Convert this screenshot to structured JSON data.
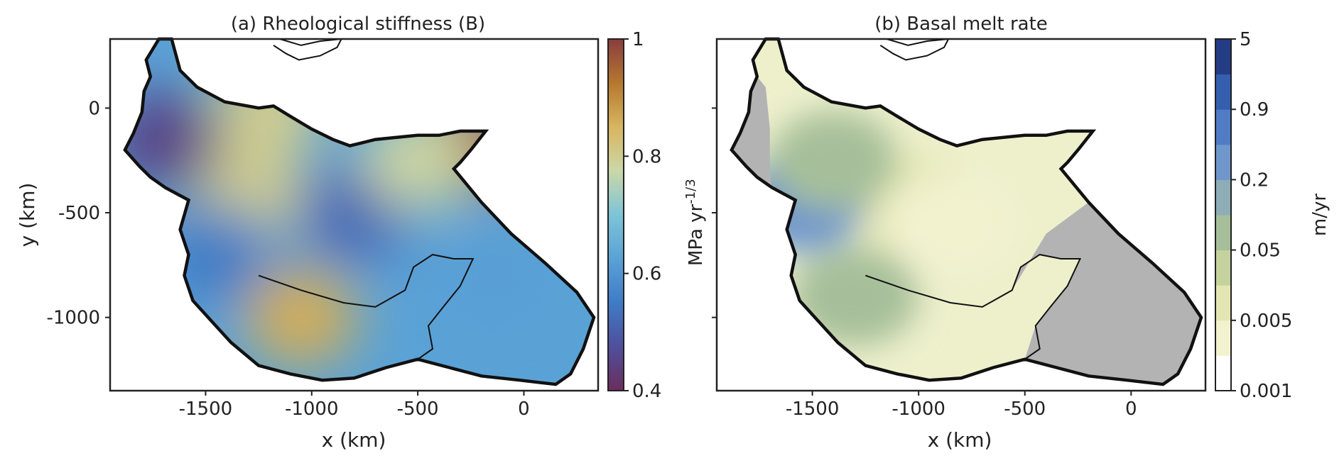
{
  "chart_data": [
    {
      "type": "heatmap",
      "title": "(a) Rheological stiffness (B)",
      "xlabel": "x (km)",
      "ylabel": "y (km)",
      "xlim": [
        -1950,
        350
      ],
      "ylim": [
        -1350,
        330
      ],
      "xticks": [
        -1500,
        -1000,
        -500,
        0
      ],
      "yticks": [
        0,
        -500,
        -1000
      ],
      "xtick_labels": [
        "-1500",
        "-1000",
        "-500",
        "0"
      ],
      "ytick_labels": [
        "0",
        "-500",
        "-1000"
      ],
      "colorbar": {
        "label": "MPa yr",
        "label_exponent": "-1/3",
        "range": [
          0.4,
          1.0
        ],
        "ticks": [
          0.4,
          0.6,
          0.8,
          1.0
        ],
        "tick_labels": [
          "0.4",
          "0.6",
          "0.8",
          "1"
        ],
        "colormap": [
          "#6b2d5c",
          "#4f4f9c",
          "#3f7bc6",
          "#5aa2d6",
          "#7ec4d7",
          "#cbd7a8",
          "#d8b560",
          "#b5772e",
          "#8a3d3f"
        ]
      },
      "regions": [
        {
          "x": -1300,
          "y": -400,
          "value": 0.8
        },
        {
          "x": -1200,
          "y": 0,
          "value": 0.8
        },
        {
          "x": -1050,
          "y": -1000,
          "value": 0.86
        },
        {
          "x": -250,
          "y": -180,
          "value": 0.95
        },
        {
          "x": -800,
          "y": -500,
          "value": 0.52
        },
        {
          "x": -500,
          "y": -250,
          "value": 0.78
        },
        {
          "x": -1700,
          "y": -150,
          "value": 0.45
        },
        {
          "x": -1450,
          "y": -700,
          "value": 0.55
        },
        {
          "x": -150,
          "y": -800,
          "value": 0.62
        }
      ]
    },
    {
      "type": "heatmap",
      "title": "(b) Basal melt rate",
      "xlabel": "x (km)",
      "ylabel": "",
      "xlim": [
        -1950,
        350
      ],
      "ylim": [
        -1350,
        330
      ],
      "xticks": [
        -1500,
        -1000,
        -500,
        0
      ],
      "xtick_labels": [
        "-1500",
        "-1000",
        "-500",
        "0"
      ],
      "colorbar": {
        "label": "m/yr",
        "scale": "log",
        "levels": [
          0.001,
          0.002,
          0.005,
          0.01,
          0.05,
          0.1,
          0.2,
          0.5,
          0.9,
          2,
          5
        ],
        "ticks": [
          0.001,
          0.005,
          0.05,
          0.2,
          0.9,
          5
        ],
        "tick_labels": [
          "0.001",
          "0.005",
          "0.05",
          "0.2",
          "0.9",
          "5"
        ],
        "colors": [
          "#ffffff",
          "#f2f2cf",
          "#e3e6b2",
          "#c5d29d",
          "#a6bf9a",
          "#8eadb6",
          "#6f97cc",
          "#4f7cc4",
          "#345fae",
          "#243c85",
          "#1f1e4e"
        ]
      },
      "shelf_color": "#b3b3b3",
      "regions": [
        {
          "x": -1050,
          "y": -450,
          "value": 0.006
        },
        {
          "x": -850,
          "y": -550,
          "value": 0.004
        },
        {
          "x": -1550,
          "y": -450,
          "value": 0.2
        },
        {
          "x": -1400,
          "y": -250,
          "value": 0.05
        },
        {
          "x": -1300,
          "y": -900,
          "value": 0.05
        }
      ]
    }
  ]
}
